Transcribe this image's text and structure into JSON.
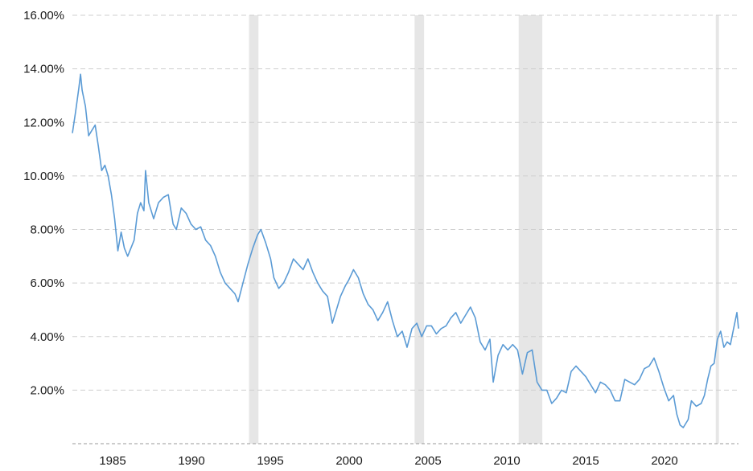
{
  "chart_data": {
    "type": "line",
    "title": "",
    "xlabel": "",
    "ylabel": "",
    "x_ticks": [
      "1985",
      "1990",
      "1995",
      "2000",
      "2005",
      "2010",
      "2015",
      "2020"
    ],
    "y_ticks": [
      "2.00%",
      "4.00%",
      "6.00%",
      "8.00%",
      "10.00%",
      "12.00%",
      "14.00%",
      "16.00%"
    ],
    "xlim": [
      1983.0,
      2022.9
    ],
    "ylim": [
      0,
      16
    ],
    "grid": "horizontal-dashed",
    "shaded_periods": [
      [
        1989.7,
        1990.3
      ],
      [
        2000.2,
        2000.8
      ],
      [
        2006.8,
        2008.3
      ],
      [
        2019.3,
        2019.45
      ]
    ],
    "series": [
      {
        "color": "#5b9bd5",
        "points": [
          [
            1983.0,
            11.6
          ],
          [
            1983.2,
            12.4
          ],
          [
            1983.4,
            13.3
          ],
          [
            1983.5,
            13.8
          ],
          [
            1983.6,
            13.2
          ],
          [
            1983.8,
            12.6
          ],
          [
            1984.0,
            11.5
          ],
          [
            1984.2,
            11.7
          ],
          [
            1984.4,
            11.9
          ],
          [
            1984.6,
            11.1
          ],
          [
            1984.8,
            10.2
          ],
          [
            1985.0,
            10.4
          ],
          [
            1985.2,
            10.0
          ],
          [
            1985.4,
            9.3
          ],
          [
            1985.6,
            8.4
          ],
          [
            1985.8,
            7.2
          ],
          [
            1986.0,
            7.9
          ],
          [
            1986.2,
            7.3
          ],
          [
            1986.4,
            7.0
          ],
          [
            1986.6,
            7.3
          ],
          [
            1986.8,
            7.6
          ],
          [
            1987.0,
            8.6
          ],
          [
            1987.2,
            9.0
          ],
          [
            1987.4,
            8.7
          ],
          [
            1987.5,
            10.2
          ],
          [
            1987.7,
            9.0
          ],
          [
            1988.0,
            8.4
          ],
          [
            1988.3,
            9.0
          ],
          [
            1988.6,
            9.2
          ],
          [
            1988.9,
            9.3
          ],
          [
            1989.2,
            8.2
          ],
          [
            1989.4,
            8.0
          ],
          [
            1989.7,
            8.8
          ],
          [
            1990.0,
            8.6
          ],
          [
            1990.3,
            8.2
          ],
          [
            1990.6,
            8.0
          ],
          [
            1990.9,
            8.1
          ],
          [
            1991.2,
            7.6
          ],
          [
            1991.5,
            7.4
          ],
          [
            1991.8,
            7.0
          ],
          [
            1992.1,
            6.4
          ],
          [
            1992.4,
            6.0
          ],
          [
            1992.7,
            5.8
          ],
          [
            1993.0,
            5.6
          ],
          [
            1993.2,
            5.3
          ],
          [
            1993.5,
            6.0
          ],
          [
            1993.8,
            6.7
          ],
          [
            1994.1,
            7.3
          ],
          [
            1994.4,
            7.8
          ],
          [
            1994.6,
            8.0
          ],
          [
            1994.9,
            7.5
          ],
          [
            1995.2,
            6.9
          ],
          [
            1995.4,
            6.2
          ],
          [
            1995.7,
            5.8
          ],
          [
            1996.0,
            6.0
          ],
          [
            1996.3,
            6.4
          ],
          [
            1996.6,
            6.9
          ],
          [
            1996.9,
            6.7
          ],
          [
            1997.2,
            6.5
          ],
          [
            1997.5,
            6.9
          ],
          [
            1997.8,
            6.4
          ],
          [
            1998.1,
            6.0
          ],
          [
            1998.4,
            5.7
          ],
          [
            1998.7,
            5.5
          ],
          [
            1999.0,
            4.5
          ],
          [
            1999.2,
            4.9
          ],
          [
            1999.5,
            5.5
          ],
          [
            1999.8,
            5.9
          ],
          [
            2000.0,
            6.1
          ],
          [
            2000.3,
            6.5
          ],
          [
            2000.6,
            6.2
          ],
          [
            2000.9,
            5.6
          ],
          [
            2001.2,
            5.2
          ],
          [
            2001.5,
            5.0
          ],
          [
            2001.8,
            4.6
          ],
          [
            2002.1,
            4.9
          ],
          [
            2002.4,
            5.3
          ],
          [
            2002.7,
            4.6
          ],
          [
            2003.0,
            4.0
          ],
          [
            2003.3,
            4.2
          ],
          [
            2003.6,
            3.6
          ],
          [
            2003.9,
            4.3
          ],
          [
            2004.2,
            4.5
          ],
          [
            2004.5,
            4.0
          ],
          [
            2004.8,
            4.4
          ],
          [
            2005.1,
            4.4
          ],
          [
            2005.4,
            4.1
          ],
          [
            2005.7,
            4.3
          ],
          [
            2006.0,
            4.4
          ],
          [
            2006.3,
            4.7
          ],
          [
            2006.6,
            4.9
          ],
          [
            2006.9,
            4.5
          ],
          [
            2007.2,
            4.8
          ],
          [
            2007.5,
            5.1
          ],
          [
            2007.8,
            4.7
          ],
          [
            2008.1,
            3.8
          ],
          [
            2008.4,
            3.5
          ],
          [
            2008.7,
            3.9
          ],
          [
            2008.9,
            2.3
          ],
          [
            2009.2,
            3.3
          ],
          [
            2009.5,
            3.7
          ],
          [
            2009.8,
            3.5
          ],
          [
            2010.1,
            3.7
          ],
          [
            2010.4,
            3.5
          ],
          [
            2010.7,
            2.6
          ],
          [
            2011.0,
            3.4
          ],
          [
            2011.3,
            3.5
          ],
          [
            2011.6,
            2.3
          ],
          [
            2011.9,
            2.0
          ],
          [
            2012.2,
            2.0
          ],
          [
            2012.5,
            1.5
          ],
          [
            2012.8,
            1.7
          ],
          [
            2013.1,
            2.0
          ],
          [
            2013.4,
            1.9
          ],
          [
            2013.7,
            2.7
          ],
          [
            2014.0,
            2.9
          ],
          [
            2014.3,
            2.7
          ],
          [
            2014.6,
            2.5
          ],
          [
            2014.9,
            2.2
          ],
          [
            2015.2,
            1.9
          ],
          [
            2015.5,
            2.3
          ],
          [
            2015.8,
            2.2
          ],
          [
            2016.1,
            2.0
          ],
          [
            2016.4,
            1.6
          ],
          [
            2016.7,
            1.6
          ],
          [
            2017.0,
            2.4
          ],
          [
            2017.3,
            2.3
          ],
          [
            2017.6,
            2.2
          ],
          [
            2017.9,
            2.4
          ],
          [
            2018.2,
            2.8
          ],
          [
            2018.5,
            2.9
          ],
          [
            2018.8,
            3.2
          ],
          [
            2019.1,
            2.7
          ],
          [
            2019.4,
            2.1
          ],
          [
            2019.7,
            1.6
          ],
          [
            2020.0,
            1.8
          ],
          [
            2020.2,
            1.1
          ],
          [
            2020.4,
            0.7
          ],
          [
            2020.6,
            0.6
          ],
          [
            2020.9,
            0.9
          ],
          [
            2021.1,
            1.6
          ],
          [
            2021.4,
            1.4
          ],
          [
            2021.7,
            1.5
          ],
          [
            2021.9,
            1.8
          ],
          [
            2022.1,
            2.4
          ],
          [
            2022.3,
            2.9
          ],
          [
            2022.5,
            3.0
          ],
          [
            2022.7,
            3.9
          ],
          [
            2022.9,
            4.2
          ],
          [
            2023.1,
            3.6
          ],
          [
            2023.3,
            3.8
          ],
          [
            2023.5,
            3.7
          ],
          [
            2023.7,
            4.3
          ],
          [
            2023.9,
            4.9
          ],
          [
            2024.0,
            4.3
          ]
        ]
      }
    ]
  }
}
